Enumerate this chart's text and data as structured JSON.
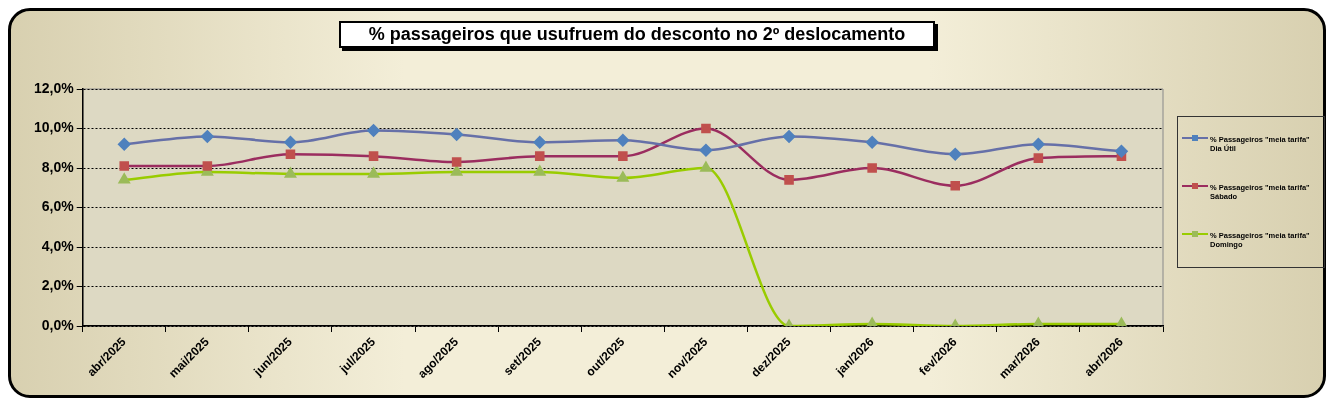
{
  "chart_data": {
    "type": "line",
    "title": "% passageiros que usufruem do desconto no 2º deslocamento",
    "categories": [
      "abr/2025",
      "mai/2025",
      "jun/2025",
      "jul/2025",
      "ago/2025",
      "set/2025",
      "out/2025",
      "nov/2025",
      "dez/2025",
      "jan/2026",
      "fev/2026",
      "mar/2026",
      "abr/2026"
    ],
    "series": [
      {
        "name": "% Passageiros \"meia tarifa\" Dia Útil",
        "color": "#4f81bd",
        "marker": "diamond",
        "values": [
          9.2,
          9.6,
          9.3,
          9.9,
          9.7,
          9.3,
          9.4,
          8.9,
          9.6,
          9.3,
          8.7,
          9.2,
          8.85
        ]
      },
      {
        "name": "% Passageiros \"meia tarifa\" Sábado",
        "color": "#c0504d",
        "marker": "square",
        "values": [
          8.1,
          8.1,
          8.7,
          8.6,
          8.3,
          8.6,
          8.6,
          10.0,
          7.4,
          8.0,
          7.1,
          8.5,
          8.6
        ]
      },
      {
        "name": "% Passageiros \"meia tarifa\" Domingo",
        "color": "#9bbb59",
        "marker": "triangle",
        "values": [
          7.4,
          7.8,
          7.7,
          7.7,
          7.8,
          7.8,
          7.5,
          8.0,
          0.0,
          0.1,
          0.0,
          0.1,
          0.1
        ]
      }
    ],
    "ylim": [
      0,
      12
    ],
    "yticks": [
      {
        "value": 0,
        "label": "0,0%"
      },
      {
        "value": 2,
        "label": "2,0%"
      },
      {
        "value": 4,
        "label": "4,0%"
      },
      {
        "value": 6,
        "label": "6,0%"
      },
      {
        "value": 8,
        "label": "8,0%"
      },
      {
        "value": 10,
        "label": "10,0%"
      },
      {
        "value": 12,
        "label": "12,0%"
      }
    ],
    "grid": "y",
    "legend": "right"
  }
}
